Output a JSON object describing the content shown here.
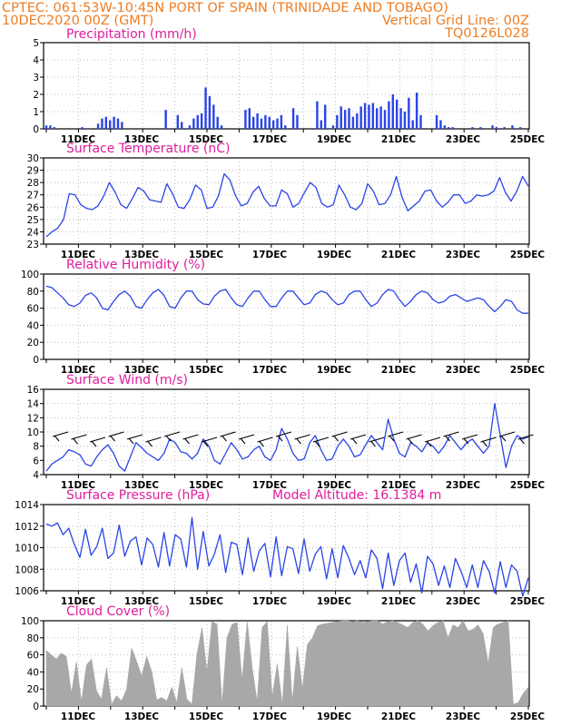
{
  "header": {
    "line1_left": "CPTEC:   061:53W-10:45N   PORT OF SPAIN (TRINIDADE AND TOBAGO)",
    "line2_left": "10DEC2020 00Z (GMT)",
    "line2_right": "Vertical Grid Line: 00Z",
    "line3_right": "TQ0126L028"
  },
  "colors": {
    "header": "#ee7d22",
    "title": "#dd1d9b",
    "series": "#2b45e6",
    "cloud": "#a8a8a8"
  },
  "x_ticks": [
    "11DEC",
    "13DEC",
    "15DEC",
    "17DEC",
    "19DEC",
    "21DEC",
    "23DEC",
    "25DEC"
  ],
  "chart_data": [
    {
      "type": "bar",
      "title": "Precipitation (mm/h)",
      "ylim": [
        0,
        5
      ],
      "yticks": [
        "0",
        "1",
        "2",
        "3",
        "4",
        "5"
      ],
      "x": "3-hourly, 10DEC 00Z - 25DEC 00Z",
      "values": [
        0.2,
        0.2,
        0.1,
        0,
        0,
        0,
        0,
        0,
        0,
        0.1,
        0,
        0,
        0,
        0.3,
        0.6,
        0.7,
        0.5,
        0.7,
        0.6,
        0.4,
        0,
        0,
        0,
        0,
        0,
        0,
        0,
        0,
        0,
        0,
        1.1,
        0,
        0,
        0.8,
        0.4,
        0,
        0.2,
        0.6,
        0.8,
        0.9,
        2.4,
        1.9,
        1.4,
        0.7,
        0.2,
        0,
        0,
        0,
        0,
        0,
        1.1,
        1.2,
        0.7,
        0.9,
        0.6,
        0.8,
        0.7,
        0.5,
        0.6,
        0.8,
        0.2,
        0,
        1.2,
        0.8,
        0,
        0,
        0,
        0,
        1.6,
        0.5,
        1.4,
        0,
        0.2,
        0.8,
        1.3,
        1.1,
        1.2,
        0.7,
        0.9,
        1.3,
        1.5,
        1.4,
        1.5,
        1.2,
        1.3,
        1.1,
        1.6,
        2.0,
        1.7,
        1.2,
        1.0,
        1.8,
        0.5,
        2.1,
        0.8,
        0,
        0,
        0,
        0.8,
        0.5,
        0.2,
        0.1,
        0.1,
        0,
        0,
        0,
        0,
        0.1,
        0,
        0.1,
        0,
        0,
        0.2,
        0.1,
        0,
        0.1,
        0,
        0.2,
        0,
        0.1,
        0,
        0
      ]
    },
    {
      "type": "line",
      "title": "Surface Temperature (nC)",
      "ylim": [
        23,
        30
      ],
      "yticks": [
        "23",
        "24",
        "25",
        "26",
        "27",
        "28",
        "29",
        "30"
      ],
      "series": [
        {
          "values": [
            23.6,
            24.0,
            24.3,
            25.0,
            27.1,
            27.0,
            26.2,
            25.9,
            25.8,
            26.1,
            26.9,
            28.0,
            27.2,
            26.2,
            25.9,
            26.7,
            27.6,
            27.3,
            26.6,
            26.5,
            26.4,
            27.9,
            27.1,
            26.0,
            25.9,
            26.6,
            27.8,
            27.4,
            25.9,
            26.0,
            26.9,
            28.7,
            28.2,
            26.9,
            26.1,
            26.3,
            27.2,
            27.7,
            26.7,
            26.1,
            26.1,
            27.4,
            27.1,
            26.0,
            26.3,
            27.2,
            28.0,
            27.6,
            26.3,
            26.0,
            26.2,
            27.8,
            27.0,
            26.0,
            25.8,
            26.3,
            27.9,
            27.3,
            26.2,
            26.3,
            27.0,
            28.5,
            26.8,
            25.7,
            26.1,
            26.5,
            27.3,
            27.4,
            26.5,
            26.0,
            26.4,
            27.0,
            27.0,
            26.3,
            26.5,
            27.0,
            26.9,
            27.0,
            27.3,
            28.4,
            27.2,
            26.5,
            27.3,
            28.5,
            27.7
          ]
        }
      ]
    },
    {
      "type": "line",
      "title": "Relative Humidity (%)",
      "ylim": [
        0,
        100
      ],
      "yticks": [
        "0",
        "20",
        "40",
        "60",
        "80",
        "100"
      ],
      "series": [
        {
          "values": [
            86,
            84,
            78,
            72,
            64,
            62,
            66,
            75,
            78,
            72,
            60,
            58,
            68,
            76,
            80,
            74,
            62,
            60,
            70,
            78,
            82,
            75,
            62,
            60,
            72,
            80,
            80,
            70,
            65,
            64,
            74,
            80,
            82,
            72,
            64,
            62,
            72,
            80,
            80,
            70,
            62,
            62,
            72,
            80,
            80,
            72,
            64,
            66,
            76,
            80,
            78,
            70,
            64,
            66,
            76,
            80,
            80,
            70,
            62,
            66,
            76,
            82,
            80,
            70,
            62,
            68,
            76,
            80,
            78,
            70,
            66,
            68,
            74,
            76,
            72,
            68,
            70,
            72,
            70,
            62,
            56,
            62,
            70,
            68,
            58,
            54,
            54
          ]
        }
      ]
    },
    {
      "type": "line",
      "title": "Surface Wind (m/s)",
      "ylim": [
        4,
        16
      ],
      "yticks": [
        "4",
        "6",
        "8",
        "10",
        "12",
        "14",
        "16"
      ],
      "series": [
        {
          "values": [
            4.5,
            5.5,
            6.0,
            6.5,
            7.5,
            7.2,
            6.8,
            5.5,
            5.2,
            6.5,
            7.5,
            8.2,
            7.0,
            5.2,
            4.5,
            6.5,
            8.5,
            7.8,
            7.0,
            6.5,
            6.0,
            7.0,
            9.0,
            8.5,
            7.2,
            7.0,
            6.2,
            7.0,
            9.0,
            8.0,
            6.0,
            5.5,
            7.0,
            8.5,
            7.5,
            6.2,
            6.5,
            7.5,
            8.0,
            6.5,
            6.0,
            7.5,
            10.5,
            9.0,
            7.0,
            6.0,
            6.2,
            8.5,
            9.5,
            7.5,
            6.0,
            6.2,
            8.0,
            9.0,
            8.0,
            6.5,
            6.8,
            8.2,
            9.5,
            8.5,
            7.5,
            11.8,
            9.0,
            7.0,
            6.5,
            8.5,
            8.0,
            7.2,
            8.5,
            8.0,
            7.0,
            8.0,
            9.5,
            8.5,
            7.5,
            8.5,
            9.0,
            8.0,
            7.0,
            8.0,
            14.0,
            9.5,
            5.0,
            8.0,
            9.5,
            9.0,
            9.3
          ]
        }
      ]
    },
    {
      "type": "line",
      "title": "Surface Pressure (hPa)",
      "annotation": "Model Altitude: 16.1384 m",
      "ylim": [
        1006,
        1014
      ],
      "yticks": [
        "1006",
        "1008",
        "1010",
        "1012",
        "1014"
      ],
      "series": [
        {
          "values": [
            1012.2,
            1012.0,
            1012.3,
            1011.2,
            1011.8,
            1010.3,
            1009.1,
            1011.7,
            1009.3,
            1010.1,
            1011.8,
            1009.0,
            1009.5,
            1012.1,
            1009.2,
            1010.6,
            1011.0,
            1008.4,
            1010.9,
            1010.3,
            1008.2,
            1011.4,
            1008.3,
            1011.2,
            1010.8,
            1008.2,
            1012.8,
            1008.0,
            1011.5,
            1008.3,
            1009.4,
            1011.2,
            1007.7,
            1010.5,
            1010.3,
            1007.5,
            1010.9,
            1007.8,
            1009.7,
            1010.4,
            1007.3,
            1011.0,
            1007.4,
            1010.1,
            1009.9,
            1007.6,
            1010.8,
            1007.8,
            1009.4,
            1010.1,
            1007.1,
            1009.9,
            1007.2,
            1010.2,
            1009.0,
            1007.5,
            1008.8,
            1007.2,
            1009.8,
            1009.0,
            1006.2,
            1009.5,
            1006.5,
            1008.8,
            1009.5,
            1006.8,
            1008.5,
            1005.8,
            1009.2,
            1008.5,
            1006.5,
            1008.3,
            1006.3,
            1009.0,
            1007.8,
            1006.3,
            1008.4,
            1006.3,
            1008.8,
            1007.8,
            1005.8,
            1008.7,
            1006.3,
            1008.4,
            1007.8,
            1005.5,
            1007.2
          ]
        }
      ]
    },
    {
      "type": "area",
      "title": "Cloud Cover (%)",
      "ylim": [
        0,
        100
      ],
      "yticks": [
        "0",
        "20",
        "40",
        "60",
        "80",
        "100"
      ],
      "series": [
        {
          "values": [
            65,
            60,
            55,
            62,
            58,
            15,
            52,
            5,
            48,
            55,
            18,
            8,
            45,
            2,
            12,
            6,
            20,
            68,
            52,
            35,
            58,
            40,
            7,
            10,
            6,
            22,
            4,
            45,
            8,
            2,
            60,
            92,
            40,
            99,
            96,
            2,
            80,
            96,
            98,
            30,
            99,
            45,
            5,
            92,
            99,
            10,
            50,
            2,
            95,
            5,
            70,
            20,
            72,
            80,
            94,
            96,
            97,
            98,
            99,
            100,
            100,
            99,
            100,
            98,
            99,
            100,
            100,
            96,
            99,
            100,
            98,
            95,
            92,
            98,
            100,
            96,
            88,
            94,
            98,
            100,
            80,
            95,
            92,
            100,
            88,
            90,
            95,
            85,
            50,
            92,
            96,
            98,
            100,
            2,
            4,
            15,
            22
          ]
        }
      ]
    }
  ]
}
